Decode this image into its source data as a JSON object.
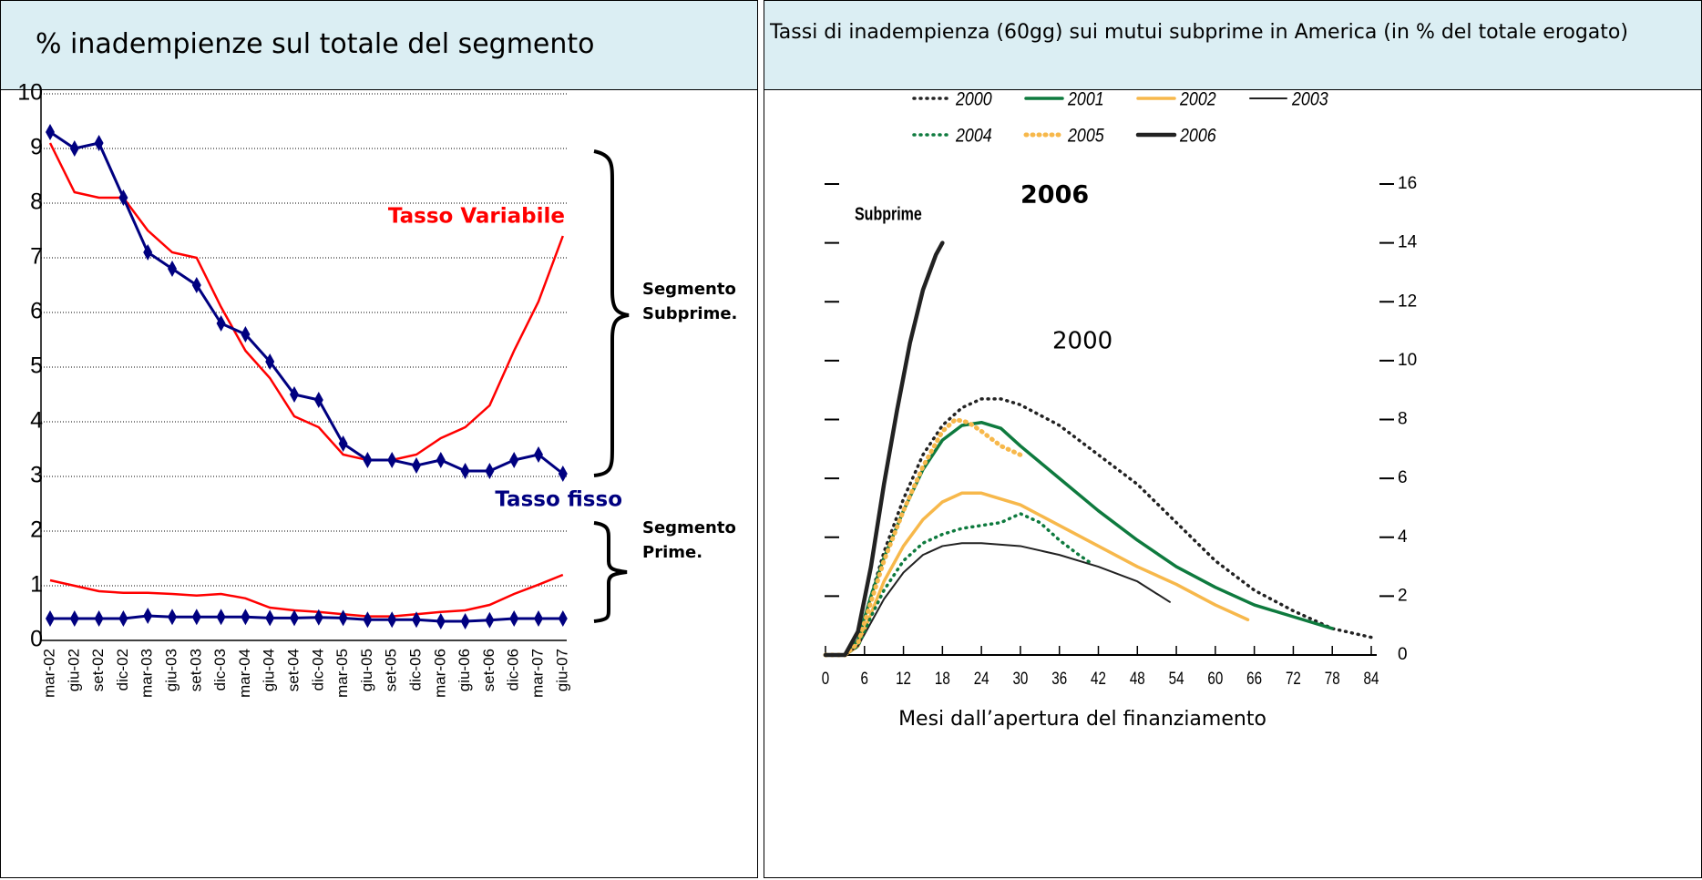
{
  "chart_data": [
    {
      "type": "line",
      "title": "% inadempienze sul totale del segmento",
      "categories": [
        "mar-02",
        "giu-02",
        "set-02",
        "dic-02",
        "mar-03",
        "giu-03",
        "set-03",
        "dic-03",
        "mar-04",
        "giu-04",
        "set-04",
        "dic-04",
        "mar-05",
        "giu-05",
        "set-05",
        "dic-05",
        "mar-06",
        "giu-06",
        "set-06",
        "dic-06",
        "mar-07",
        "giu-07"
      ],
      "ylim": [
        0,
        10
      ],
      "yticks": [
        0,
        1,
        2,
        3,
        4,
        5,
        6,
        7,
        8,
        9,
        10
      ],
      "grid": true,
      "series": [
        {
          "color": "#ff0000",
          "values": [
            9.1,
            8.2,
            8.1,
            8.1,
            7.5,
            7.1,
            7.0,
            6.1,
            5.3,
            4.8,
            4.1,
            3.9,
            3.4,
            3.3,
            3.3,
            3.4,
            3.7,
            3.9,
            4.3,
            5.3,
            6.2,
            7.4
          ]
        },
        {
          "color": "#000080",
          "marker": "diamond",
          "values": [
            9.3,
            9.0,
            9.1,
            8.1,
            7.1,
            6.8,
            6.5,
            5.8,
            5.6,
            5.1,
            4.5,
            4.4,
            3.6,
            3.3,
            3.3,
            3.2,
            3.3,
            3.1,
            3.1,
            3.3,
            3.4,
            3.05
          ]
        },
        {
          "color": "#ff0000",
          "values": [
            1.1,
            1.0,
            0.9,
            0.87,
            0.87,
            0.85,
            0.82,
            0.85,
            0.77,
            0.6,
            0.55,
            0.52,
            0.48,
            0.44,
            0.44,
            0.48,
            0.52,
            0.55,
            0.65,
            0.85,
            1.02,
            1.2
          ]
        },
        {
          "color": "#000080",
          "marker": "diamond",
          "values": [
            0.4,
            0.4,
            0.4,
            0.4,
            0.45,
            0.43,
            0.43,
            0.43,
            0.43,
            0.41,
            0.41,
            0.42,
            0.41,
            0.38,
            0.38,
            0.38,
            0.35,
            0.35,
            0.37,
            0.4,
            0.4,
            0.4
          ]
        }
      ],
      "annotations": [
        "Tasso Variabile",
        "Tasso fisso",
        "Segmento",
        "Subprime.",
        "Segmento",
        "Prime."
      ]
    },
    {
      "type": "line",
      "title": "Tassi di inadempienza (60gg) sui mutui subprime in America (in % del totale erogato)",
      "xlabel": "Mesi dall’apertura del finanziamento",
      "xlim": [
        0,
        84
      ],
      "xticks": [
        0,
        6,
        12,
        18,
        24,
        30,
        36,
        42,
        48,
        54,
        60,
        66,
        72,
        78,
        84
      ],
      "ylim": [
        0,
        16
      ],
      "yticks": [
        0,
        2,
        4,
        6,
        8,
        10,
        12,
        14,
        16
      ],
      "series": [
        {
          "name": "2000",
          "color": "#222222",
          "style": "dotted",
          "x": [
            0,
            3,
            5,
            7,
            9,
            12,
            15,
            18,
            21,
            24,
            27,
            30,
            36,
            42,
            48,
            54,
            60,
            66,
            72,
            78,
            84
          ],
          "values": [
            0,
            0,
            0.5,
            2,
            3.5,
            5.3,
            6.8,
            7.8,
            8.4,
            8.7,
            8.7,
            8.5,
            7.8,
            6.8,
            5.8,
            4.5,
            3.2,
            2.2,
            1.5,
            0.9,
            0.6
          ]
        },
        {
          "name": "2001",
          "color": "#0e7a3e",
          "style": "solid",
          "x": [
            0,
            3,
            5,
            7,
            9,
            12,
            15,
            18,
            21,
            24,
            27,
            30,
            36,
            42,
            48,
            54,
            60,
            66,
            72,
            78
          ],
          "values": [
            0,
            0,
            0.5,
            2,
            3.3,
            4.9,
            6.3,
            7.3,
            7.8,
            7.9,
            7.7,
            7.1,
            6.0,
            4.9,
            3.9,
            3.0,
            2.3,
            1.7,
            1.3,
            0.9
          ]
        },
        {
          "name": "2002",
          "color": "#f7b84b",
          "style": "solid",
          "x": [
            0,
            3,
            5,
            7,
            9,
            12,
            15,
            18,
            21,
            24,
            30,
            36,
            42,
            48,
            54,
            60,
            65
          ],
          "values": [
            0,
            0,
            0.3,
            1.4,
            2.5,
            3.7,
            4.6,
            5.2,
            5.5,
            5.5,
            5.1,
            4.4,
            3.7,
            3.0,
            2.4,
            1.7,
            1.2
          ]
        },
        {
          "name": "2003",
          "color": "#222222",
          "style": "thin",
          "x": [
            0,
            3,
            5,
            7,
            9,
            12,
            15,
            18,
            21,
            24,
            30,
            36,
            42,
            48,
            53
          ],
          "values": [
            0,
            0,
            0.3,
            1.1,
            1.9,
            2.8,
            3.4,
            3.7,
            3.8,
            3.8,
            3.7,
            3.4,
            3.0,
            2.5,
            1.8
          ]
        },
        {
          "name": "2004",
          "color": "#0e7a3e",
          "style": "dotted",
          "x": [
            0,
            3,
            5,
            7,
            9,
            12,
            15,
            18,
            21,
            24,
            27,
            30,
            33,
            36,
            39,
            41
          ],
          "values": [
            0,
            0,
            0.3,
            1.3,
            2.2,
            3.2,
            3.8,
            4.1,
            4.3,
            4.4,
            4.5,
            4.8,
            4.5,
            3.9,
            3.4,
            3.1
          ]
        },
        {
          "name": "2005",
          "color": "#f7b84b",
          "style": "dotted",
          "x": [
            0,
            3,
            5,
            7,
            9,
            12,
            15,
            18,
            20,
            22,
            24,
            27,
            30
          ],
          "values": [
            0,
            0,
            0.4,
            1.8,
            3.2,
            4.9,
            6.4,
            7.6,
            8.0,
            7.9,
            7.6,
            7.1,
            6.8
          ]
        },
        {
          "name": "2006",
          "color": "#222222",
          "style": "thick",
          "x": [
            0,
            3,
            5,
            7,
            9,
            11,
            13,
            15,
            17,
            18
          ],
          "values": [
            0,
            0,
            0.8,
            3.0,
            5.8,
            8.3,
            10.6,
            12.4,
            13.6,
            14.0
          ]
        }
      ],
      "annotations": [
        "Subprime",
        "2006",
        "2000"
      ]
    }
  ]
}
